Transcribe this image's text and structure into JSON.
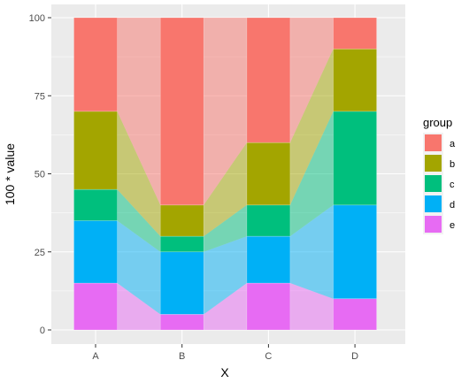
{
  "chart_data": {
    "type": "bar",
    "subtype": "stacked-alluvial",
    "categories": [
      "A",
      "B",
      "C",
      "D"
    ],
    "xlabel": "X",
    "ylabel": "100 * value",
    "ylim": [
      0,
      100
    ],
    "yticks": [
      0,
      25,
      50,
      75,
      100
    ],
    "grid": true,
    "stack_order": "e at bottom, a at top",
    "series": [
      {
        "name": "a",
        "color": "#F8766D",
        "values": [
          30,
          60,
          40,
          10
        ]
      },
      {
        "name": "b",
        "color": "#A3A500",
        "values": [
          25,
          10,
          20,
          20
        ]
      },
      {
        "name": "c",
        "color": "#00BF7D",
        "values": [
          10,
          5,
          10,
          30
        ]
      },
      {
        "name": "d",
        "color": "#00B0F6",
        "values": [
          20,
          20,
          15,
          30
        ]
      },
      {
        "name": "e",
        "color": "#E76BF3",
        "values": [
          15,
          5,
          15,
          10
        ]
      }
    ],
    "legend": {
      "title": "group",
      "position": "right"
    }
  }
}
